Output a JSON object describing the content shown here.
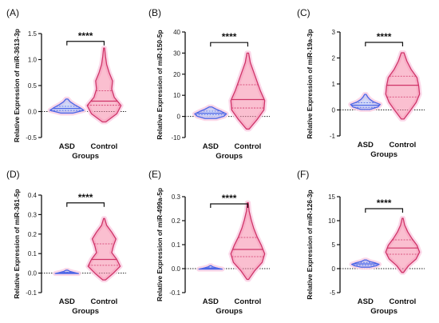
{
  "figure": {
    "colors": {
      "asd_fill": "#b8c4f5",
      "asd_stroke": "#4d66e6",
      "control_fill": "#f58aa9",
      "control_stroke": "#cf3468",
      "halo": "#fbd3e6",
      "axis": "#111111",
      "baseline": "#222222"
    }
  },
  "chart_data": [
    {
      "type": "violin",
      "panel_label": "(A)",
      "ylabel": "Relative Expression of miR-3613-3p",
      "xlabel": "Groups",
      "categories": [
        "ASD",
        "Control"
      ],
      "ylim": [
        -0.5,
        1.5
      ],
      "yticks": [
        "-0.5",
        "0.0",
        "0.5",
        "1.0",
        "1.5"
      ],
      "baseline_y": 0,
      "significance": "****",
      "bracket_y": 1.35,
      "violins": [
        {
          "name": "ASD",
          "ymin": -0.03,
          "ymax": 0.24,
          "median": 0.06,
          "q1": 0.02,
          "q3": 0.1,
          "width": 0.32,
          "shape": [
            0.35,
            1.0,
            0.75,
            0.45,
            0.2,
            0.06
          ]
        },
        {
          "name": "Control",
          "ymin": -0.2,
          "ymax": 1.22,
          "median": 0.2,
          "q1": 0.12,
          "q3": 0.4,
          "width": 0.32,
          "shape": [
            0.1,
            0.75,
            1.0,
            0.6,
            0.45,
            0.5,
            0.3,
            0.15,
            0.08,
            0.03
          ]
        }
      ]
    },
    {
      "type": "violin",
      "panel_label": "(B)",
      "ylabel": "Relative Expression of miR-150-5p",
      "xlabel": "Groups",
      "categories": [
        "ASD",
        "Control"
      ],
      "ylim": [
        -10,
        40
      ],
      "yticks": [
        "-10",
        "0",
        "10",
        "20",
        "30",
        "40"
      ],
      "baseline_y": 0,
      "significance": "****",
      "bracket_y": 35,
      "violins": [
        {
          "name": "ASD",
          "ymin": -1,
          "ymax": 4.5,
          "median": 1.5,
          "q1": 0.8,
          "q3": 2.5,
          "width": 0.3,
          "shape": [
            0.35,
            0.85,
            1.0,
            0.7,
            0.35,
            0.08
          ]
        },
        {
          "name": "Control",
          "ymin": -6,
          "ymax": 30,
          "median": 8,
          "q1": 4,
          "q3": 15,
          "width": 0.32,
          "shape": [
            0.08,
            0.55,
            0.95,
            1.0,
            0.75,
            0.55,
            0.35,
            0.15,
            0.05
          ]
        }
      ]
    },
    {
      "type": "violin",
      "panel_label": "(C)",
      "ylabel": "Relative Expression of miR-19a-3p",
      "xlabel": "Groups",
      "categories": [
        "ASD",
        "Control"
      ],
      "ylim": [
        -1,
        3
      ],
      "yticks": [
        "-1",
        "0",
        "1",
        "2",
        "3"
      ],
      "baseline_y": 0,
      "significance": "****",
      "bracket_y": 2.6,
      "violins": [
        {
          "name": "ASD",
          "ymin": 0.02,
          "ymax": 0.6,
          "median": 0.18,
          "q1": 0.1,
          "q3": 0.28,
          "width": 0.28,
          "shape": [
            0.3,
            0.85,
            1.0,
            0.55,
            0.3,
            0.15,
            0.05
          ]
        },
        {
          "name": "Control",
          "ymin": -0.35,
          "ymax": 2.2,
          "median": 0.95,
          "q1": 0.5,
          "q3": 1.3,
          "width": 0.32,
          "shape": [
            0.08,
            0.45,
            0.8,
            1.0,
            0.95,
            0.85,
            0.5,
            0.25,
            0.08
          ]
        }
      ]
    },
    {
      "type": "violin",
      "panel_label": "(D)",
      "ylabel": "Relative Expression of miR-361-5p",
      "xlabel": "Groups",
      "categories": [
        "ASD",
        "Control"
      ],
      "ylim": [
        -0.1,
        0.4
      ],
      "yticks": [
        "-0.1",
        "0.0",
        "0.1",
        "0.2",
        "0.3",
        "0.4"
      ],
      "baseline_y": 0,
      "significance": "****",
      "bracket_y": 0.36,
      "violins": [
        {
          "name": "ASD",
          "ymin": -0.002,
          "ymax": 0.015,
          "median": 0.003,
          "q1": 0.001,
          "q3": 0.005,
          "width": 0.22,
          "shape": [
            1.0,
            0.6,
            0.25,
            0.08
          ]
        },
        {
          "name": "Control",
          "ymin": -0.035,
          "ymax": 0.28,
          "median": 0.07,
          "q1": 0.04,
          "q3": 0.15,
          "width": 0.32,
          "shape": [
            0.08,
            0.55,
            0.95,
            0.75,
            0.45,
            0.55,
            0.7,
            0.45,
            0.15,
            0.03
          ]
        }
      ]
    },
    {
      "type": "violin",
      "panel_label": "(E)",
      "ylabel": "Relative Expression of miR-499a-5p",
      "xlabel": "Groups",
      "categories": [
        "ASD",
        "Control"
      ],
      "ylim": [
        -0.1,
        0.3
      ],
      "yticks": [
        "-0.1",
        "0.0",
        "0.1",
        "0.2",
        "0.3"
      ],
      "baseline_y": 0,
      "significance": "****",
      "bracket_y": 0.27,
      "violins": [
        {
          "name": "ASD",
          "ymin": -0.002,
          "ymax": 0.012,
          "median": 0.002,
          "q1": 0.001,
          "q3": 0.004,
          "width": 0.22,
          "shape": [
            1.0,
            0.55,
            0.2,
            0.06
          ]
        },
        {
          "name": "Control",
          "ymin": -0.045,
          "ymax": 0.275,
          "median": 0.08,
          "q1": 0.05,
          "q3": 0.13,
          "width": 0.32,
          "shape": [
            0.05,
            0.4,
            0.85,
            1.0,
            0.8,
            0.55,
            0.35,
            0.2,
            0.08,
            0.03
          ]
        }
      ]
    },
    {
      "type": "violin",
      "panel_label": "(F)",
      "ylabel": "Relative Expression of miR-126-3p",
      "xlabel": "Groups",
      "categories": [
        "ASD",
        "Control"
      ],
      "ylim": [
        -5,
        15
      ],
      "yticks": [
        "-5",
        "0",
        "5",
        "10",
        "15"
      ],
      "baseline_y": 0,
      "significance": "****",
      "bracket_y": 12.5,
      "violins": [
        {
          "name": "ASD",
          "ymin": 0.3,
          "ymax": 1.8,
          "median": 1.0,
          "q1": 0.7,
          "q3": 1.3,
          "width": 0.26,
          "shape": [
            0.3,
            0.8,
            1.0,
            0.7,
            0.3,
            0.08
          ]
        },
        {
          "name": "Control",
          "ymin": -0.8,
          "ymax": 10.5,
          "median": 4.3,
          "q1": 3,
          "q3": 6,
          "width": 0.32,
          "shape": [
            0.05,
            0.35,
            0.8,
            1.0,
            0.85,
            0.55,
            0.3,
            0.12,
            0.03
          ]
        }
      ]
    }
  ]
}
